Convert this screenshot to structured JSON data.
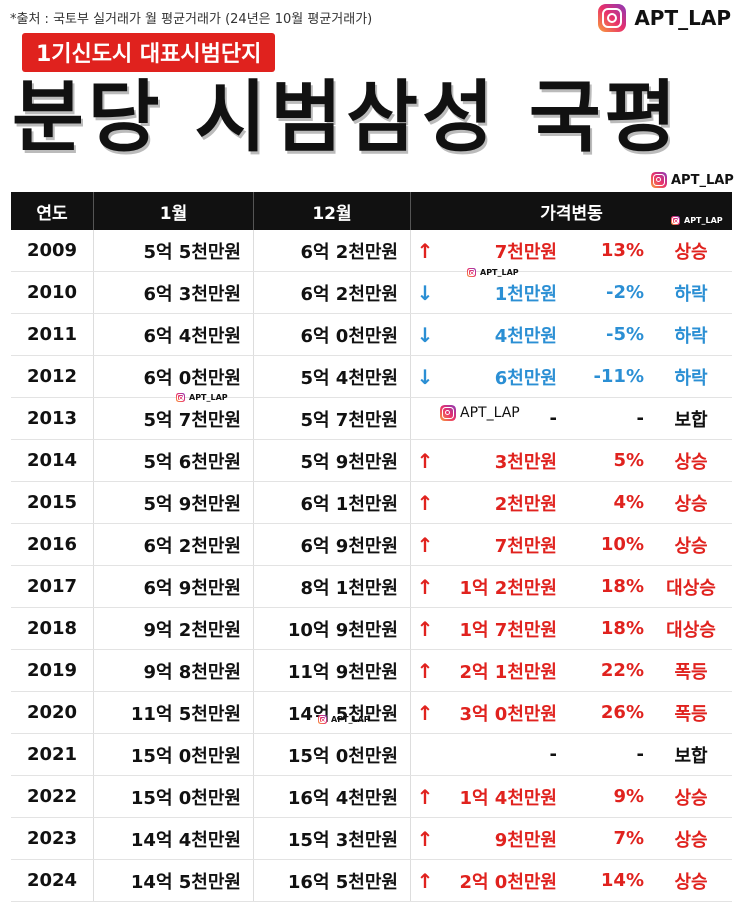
{
  "source_note": "*출처 : 국토부 실거래가 월 평균거래가 (24년은 10월 평균거래가)",
  "brand": "APT_LAP",
  "subtitle": "1기신도시 대표시범단지",
  "title": "분당 시범삼성 국평",
  "watermark": "APT_LAP",
  "colors": {
    "up": "#e0221e",
    "down": "#2b8fd4",
    "flat": "#111111",
    "header_bg": "#111111",
    "subtitle_bg": "#e0221e"
  },
  "table": {
    "headers": {
      "year": "연도",
      "jan": "1월",
      "dec": "12월",
      "change": "가격변동"
    },
    "rows": [
      {
        "year": "2009",
        "jan": "5억 5천만원",
        "dec": "6억 2천만원",
        "arrow": "↑",
        "amount": "7천만원",
        "pct": "13%",
        "status": "상승",
        "dir": "up"
      },
      {
        "year": "2010",
        "jan": "6억 3천만원",
        "dec": "6억 2천만원",
        "arrow": "↓",
        "amount": "1천만원",
        "pct": "-2%",
        "status": "하락",
        "dir": "down"
      },
      {
        "year": "2011",
        "jan": "6억 4천만원",
        "dec": "6억 0천만원",
        "arrow": "↓",
        "amount": "4천만원",
        "pct": "-5%",
        "status": "하락",
        "dir": "down"
      },
      {
        "year": "2012",
        "jan": "6억 0천만원",
        "dec": "5억 4천만원",
        "arrow": "↓",
        "amount": "6천만원",
        "pct": "-11%",
        "status": "하락",
        "dir": "down"
      },
      {
        "year": "2013",
        "jan": "5억 7천만원",
        "dec": "5억 7천만원",
        "arrow": "",
        "amount": "-",
        "pct": "-",
        "status": "보합",
        "dir": "flat"
      },
      {
        "year": "2014",
        "jan": "5억 6천만원",
        "dec": "5억 9천만원",
        "arrow": "↑",
        "amount": "3천만원",
        "pct": "5%",
        "status": "상승",
        "dir": "up"
      },
      {
        "year": "2015",
        "jan": "5억 9천만원",
        "dec": "6억 1천만원",
        "arrow": "↑",
        "amount": "2천만원",
        "pct": "4%",
        "status": "상승",
        "dir": "up"
      },
      {
        "year": "2016",
        "jan": "6억 2천만원",
        "dec": "6억 9천만원",
        "arrow": "↑",
        "amount": "7천만원",
        "pct": "10%",
        "status": "상승",
        "dir": "up"
      },
      {
        "year": "2017",
        "jan": "6억 9천만원",
        "dec": "8억 1천만원",
        "arrow": "↑",
        "amount": "1억 2천만원",
        "pct": "18%",
        "status": "대상승",
        "dir": "up"
      },
      {
        "year": "2018",
        "jan": "9억 2천만원",
        "dec": "10억 9천만원",
        "arrow": "↑",
        "amount": "1억 7천만원",
        "pct": "18%",
        "status": "대상승",
        "dir": "up"
      },
      {
        "year": "2019",
        "jan": "9억 8천만원",
        "dec": "11억 9천만원",
        "arrow": "↑",
        "amount": "2억 1천만원",
        "pct": "22%",
        "status": "폭등",
        "dir": "up"
      },
      {
        "year": "2020",
        "jan": "11억 5천만원",
        "dec": "14억 5천만원",
        "arrow": "↑",
        "amount": "3억 0천만원",
        "pct": "26%",
        "status": "폭등",
        "dir": "up"
      },
      {
        "year": "2021",
        "jan": "15억 0천만원",
        "dec": "15억 0천만원",
        "arrow": "",
        "amount": "-",
        "pct": "-",
        "status": "보합",
        "dir": "flat"
      },
      {
        "year": "2022",
        "jan": "15억 0천만원",
        "dec": "16억 4천만원",
        "arrow": "↑",
        "amount": "1억 4천만원",
        "pct": "9%",
        "status": "상승",
        "dir": "up"
      },
      {
        "year": "2023",
        "jan": "14억 4천만원",
        "dec": "15억 3천만원",
        "arrow": "↑",
        "amount": "9천만원",
        "pct": "7%",
        "status": "상승",
        "dir": "up"
      },
      {
        "year": "2024",
        "jan": "14억 5천만원",
        "dec": "16억 5천만원",
        "arrow": "↑",
        "amount": "2억 0천만원",
        "pct": "14%",
        "status": "상승",
        "dir": "up"
      }
    ]
  }
}
